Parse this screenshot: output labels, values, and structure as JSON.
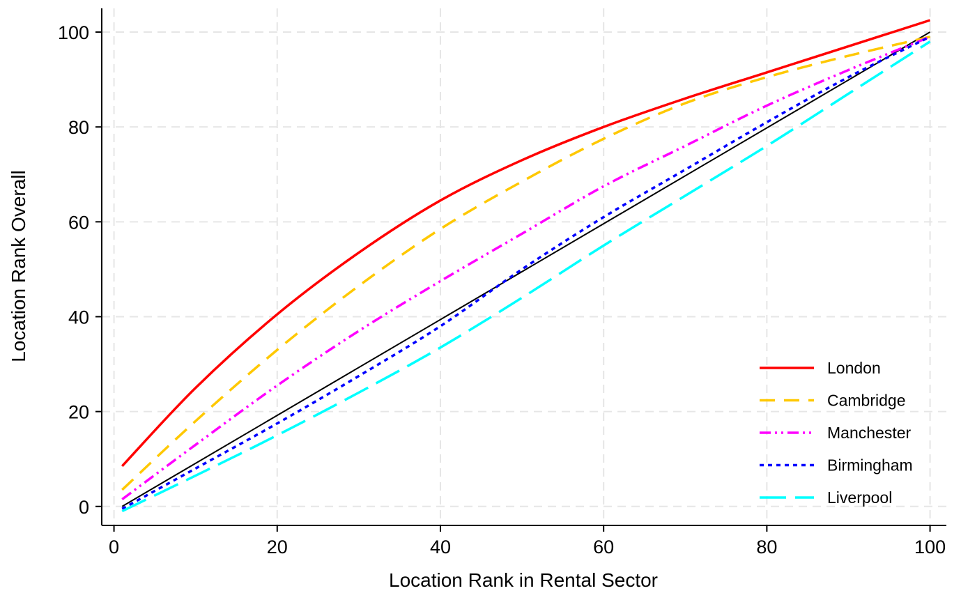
{
  "chart_data": {
    "type": "line",
    "xlabel": "Location Rank in Rental Sector",
    "ylabel": "Location Rank Overall",
    "xlim": [
      -1.5,
      102
    ],
    "ylim": [
      -4,
      105
    ],
    "x_ticks": [
      0,
      20,
      40,
      60,
      80,
      100
    ],
    "y_ticks": [
      0,
      20,
      40,
      60,
      80,
      100
    ],
    "x_tick_labels": [
      "0",
      "20",
      "40",
      "60",
      "80",
      "100"
    ],
    "y_tick_labels": [
      "0",
      "20",
      "40",
      "60",
      "80",
      "100"
    ],
    "grid": true,
    "legend_position": "bottom-right",
    "reference_line": {
      "x": [
        1,
        100
      ],
      "y": [
        0,
        100
      ],
      "color": "#000000"
    },
    "series": [
      {
        "name": "London",
        "color": "#ff0000",
        "dash": "solid",
        "x": [
          1,
          10,
          20,
          30,
          40,
          50,
          60,
          70,
          80,
          90,
          100
        ],
        "y": [
          8.5,
          25,
          40.5,
          53.5,
          64.5,
          73,
          80,
          86,
          91.5,
          97,
          102.5
        ]
      },
      {
        "name": "Cambridge",
        "color": "#ffc800",
        "dash": "dashed",
        "x": [
          1,
          10,
          20,
          30,
          40,
          50,
          60,
          70,
          80,
          90,
          100
        ],
        "y": [
          3.5,
          18,
          33,
          46.5,
          58.5,
          68.5,
          77.5,
          85,
          90.5,
          95,
          99
        ]
      },
      {
        "name": "Manchester",
        "color": "#ff00ff",
        "dash": "dash-dot-dot",
        "x": [
          1,
          10,
          20,
          30,
          40,
          50,
          60,
          70,
          80,
          90,
          100
        ],
        "y": [
          1.5,
          13,
          25.5,
          37,
          47.5,
          57.5,
          67.5,
          76,
          84.5,
          92,
          99
        ]
      },
      {
        "name": "Birmingham",
        "color": "#0000ff",
        "dash": "dotted",
        "x": [
          1,
          10,
          20,
          30,
          40,
          50,
          60,
          70,
          80,
          90,
          100
        ],
        "y": [
          -0.5,
          8,
          17.5,
          27.5,
          38,
          50,
          61,
          71,
          81,
          90.5,
          99
        ]
      },
      {
        "name": "Liverpool",
        "color": "#00ffff",
        "dash": "long-dash",
        "x": [
          1,
          10,
          20,
          30,
          40,
          50,
          60,
          70,
          80,
          90,
          100
        ],
        "y": [
          -1,
          6.5,
          15,
          24,
          33.5,
          44,
          55,
          65.5,
          76,
          87,
          98
        ]
      }
    ]
  }
}
